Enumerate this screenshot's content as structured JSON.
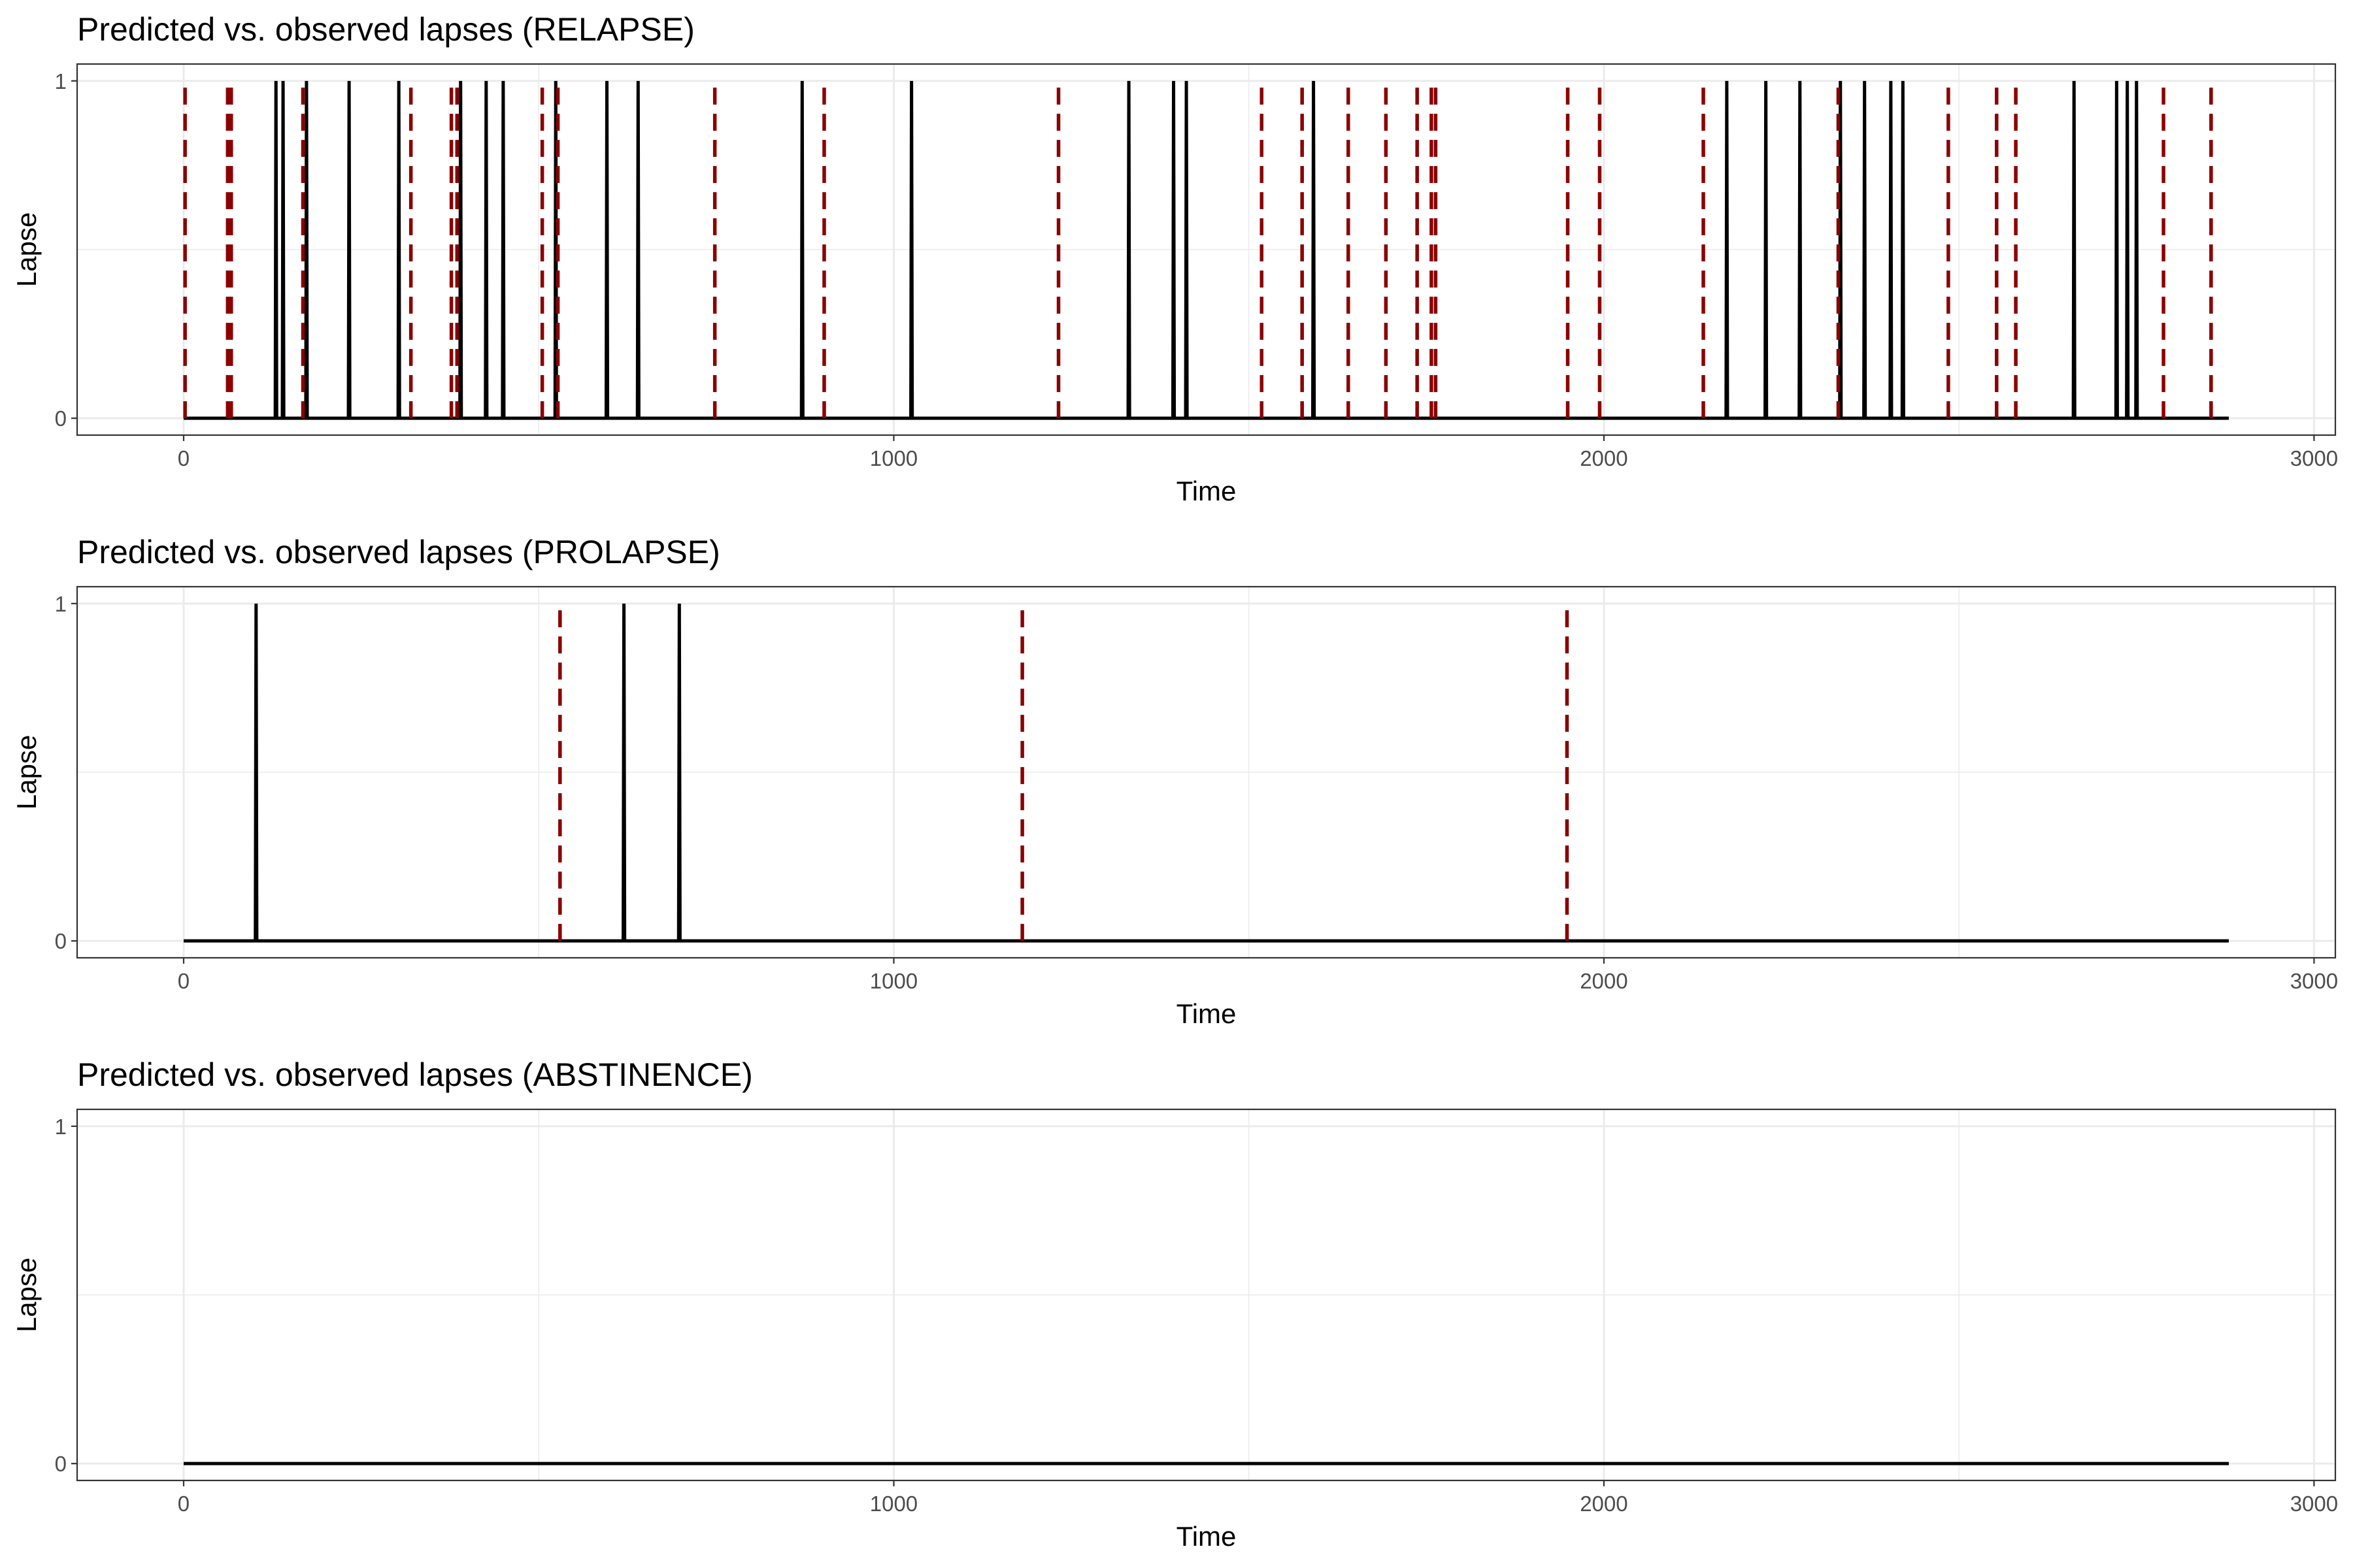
{
  "colors": {
    "observed": "#000000",
    "predicted": "#8B0000",
    "grid": "#EBEBEB",
    "panel_border": "#333333",
    "text": "#000000",
    "tick_text": "#4D4D4D"
  },
  "chart_data": [
    {
      "type": "line",
      "title": "Predicted vs. observed lapses (RELAPSE)",
      "xlabel": "Time",
      "ylabel": "Lapse",
      "xlim": [
        -150,
        3030
      ],
      "ylim": [
        -0.05,
        1.05
      ],
      "xticks": [
        0,
        1000,
        2000,
        3000
      ],
      "yticks": [
        0,
        1
      ],
      "grid": true,
      "legend": "none",
      "series": [
        {
          "style": "solid",
          "baseline_range": [
            0,
            2880
          ],
          "event_values": 1,
          "event_times": [
            130,
            140,
            173,
            233,
            303,
            390,
            426,
            450,
            524,
            596,
            640,
            871,
            1025,
            1331,
            1394,
            1412,
            1591,
            2173,
            2228,
            2276,
            2333,
            2367,
            2404,
            2421,
            2662,
            2722,
            2737,
            2750
          ]
        },
        {
          "style": "dashed",
          "event_values": 1,
          "event_times": [
            2,
            62,
            67,
            168,
            320,
            377,
            385,
            505,
            527,
            748,
            902,
            1232,
            1518,
            1575,
            1640,
            1693,
            1737,
            1757,
            1763,
            1949,
            1994,
            2140,
            2330,
            2485,
            2553,
            2580,
            2788,
            2855
          ]
        }
      ]
    },
    {
      "type": "line",
      "title": "Predicted vs. observed lapses (PROLAPSE)",
      "xlabel": "Time",
      "ylabel": "Lapse",
      "xlim": [
        -150,
        3030
      ],
      "ylim": [
        -0.05,
        1.05
      ],
      "xticks": [
        0,
        1000,
        2000,
        3000
      ],
      "yticks": [
        0,
        1
      ],
      "grid": true,
      "legend": "none",
      "series": [
        {
          "style": "solid",
          "baseline_range": [
            0,
            2880
          ],
          "event_values": 1,
          "event_times": [
            102,
            620,
            698
          ]
        },
        {
          "style": "dashed",
          "event_values": 1,
          "event_times": [
            530,
            1181,
            1948
          ]
        }
      ]
    },
    {
      "type": "line",
      "title": "Predicted vs. observed lapses (ABSTINENCE)",
      "xlabel": "Time",
      "ylabel": "Lapse",
      "xlim": [
        -150,
        3030
      ],
      "ylim": [
        -0.05,
        1.05
      ],
      "xticks": [
        0,
        1000,
        2000,
        3000
      ],
      "yticks": [
        0,
        1
      ],
      "grid": true,
      "legend": "none",
      "series": [
        {
          "style": "solid",
          "baseline_range": [
            0,
            2880
          ],
          "event_values": 1,
          "event_times": []
        },
        {
          "style": "dashed",
          "event_values": 1,
          "event_times": []
        }
      ]
    }
  ]
}
